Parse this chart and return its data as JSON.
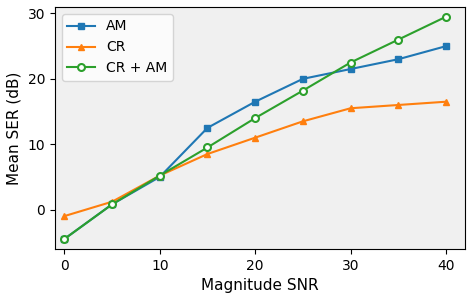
{
  "x_all": [
    0,
    5,
    10,
    15,
    20,
    25,
    30,
    35,
    40
  ],
  "y_AM": [
    -4.5,
    0.8,
    5.0,
    12.5,
    16.5,
    20.0,
    21.5,
    23.0,
    25.0
  ],
  "y_CR": [
    -1.0,
    1.2,
    5.2,
    8.5,
    11.0,
    13.5,
    15.5,
    16.0,
    16.5
  ],
  "y_CRAM": [
    -4.5,
    0.8,
    5.2,
    9.5,
    14.0,
    18.2,
    22.5,
    26.0,
    29.5
  ],
  "AM_color": "#1f77b4",
  "CR_color": "#ff7f0e",
  "CR_AM_color": "#2ca02c",
  "xlabel": "Magnitude SNR",
  "ylabel": "Mean SER (dB)",
  "xlim": [
    -1,
    42
  ],
  "ylim": [
    -6,
    31
  ],
  "xticks": [
    0,
    10,
    20,
    30,
    40
  ],
  "yticks": [
    0,
    10,
    20,
    30
  ],
  "legend_labels": [
    "AM",
    "CR",
    "CR + AM"
  ],
  "figwidth": 4.72,
  "figheight": 3.0,
  "dpi": 100
}
